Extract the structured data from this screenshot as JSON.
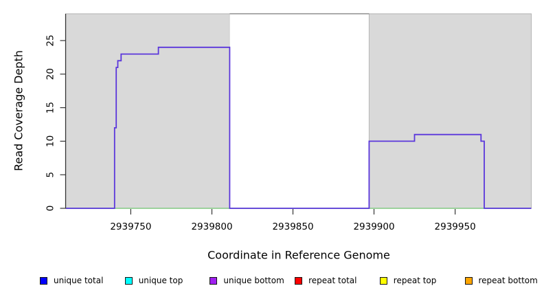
{
  "chart_data": {
    "type": "line",
    "title": "",
    "xlabel": "Coordinate in Reference Genome",
    "ylabel": "Read Coverage Depth",
    "xlim": [
      2939710,
      2939997
    ],
    "ylim": [
      0,
      29
    ],
    "x_ticks": [
      2939750,
      2939800,
      2939850,
      2939900,
      2939950
    ],
    "y_ticks": [
      0,
      5,
      10,
      15,
      20,
      25
    ],
    "grid": false,
    "legend_position": "bottom",
    "background_regions": [
      {
        "name": "unique-region-left",
        "x0": 2939710,
        "x1": 2939811,
        "color": "#d9d9d9"
      },
      {
        "name": "repeat-region-middle",
        "x0": 2939811,
        "x1": 2939897,
        "color": "#ffffff"
      },
      {
        "name": "unique-region-right",
        "x0": 2939897,
        "x1": 2939997,
        "color": "#d9d9d9"
      }
    ],
    "series": [
      {
        "name": "zero baseline",
        "color": "#82c982",
        "stroke_width": 1.4,
        "points": [
          [
            2939710,
            0
          ],
          [
            2939997,
            0
          ]
        ]
      },
      {
        "name": "off-scale coverage in repeat region",
        "color": "#8f8f8f",
        "stroke_width": 1.5,
        "points": [
          [
            2939811,
            29
          ],
          [
            2939897,
            29
          ]
        ]
      },
      {
        "name": "unique bottom coverage",
        "color": "#5a36db",
        "stroke_width": 1.8,
        "points": [
          [
            2939710,
            0
          ],
          [
            2939740,
            0
          ],
          [
            2939740,
            12
          ],
          [
            2939741,
            12
          ],
          [
            2939741,
            21
          ],
          [
            2939742,
            21
          ],
          [
            2939742,
            22
          ],
          [
            2939744,
            22
          ],
          [
            2939744,
            23
          ],
          [
            2939767,
            23
          ],
          [
            2939767,
            24
          ],
          [
            2939811,
            24
          ],
          [
            2939811,
            0
          ],
          [
            2939897,
            0
          ],
          [
            2939897,
            10
          ],
          [
            2939925,
            10
          ],
          [
            2939925,
            11
          ],
          [
            2939966,
            11
          ],
          [
            2939966,
            10
          ],
          [
            2939968,
            10
          ],
          [
            2939968,
            0
          ],
          [
            2939997,
            0
          ]
        ]
      }
    ],
    "legend": [
      {
        "label": "unique total",
        "color": "#0000ff"
      },
      {
        "label": "unique top",
        "color": "#00ffff"
      },
      {
        "label": "unique bottom",
        "color": "#a020f0"
      },
      {
        "label": "repeat total",
        "color": "#ff0000"
      },
      {
        "label": "repeat top",
        "color": "#ffff00"
      },
      {
        "label": "repeat bottom",
        "color": "#ffa500"
      }
    ]
  }
}
